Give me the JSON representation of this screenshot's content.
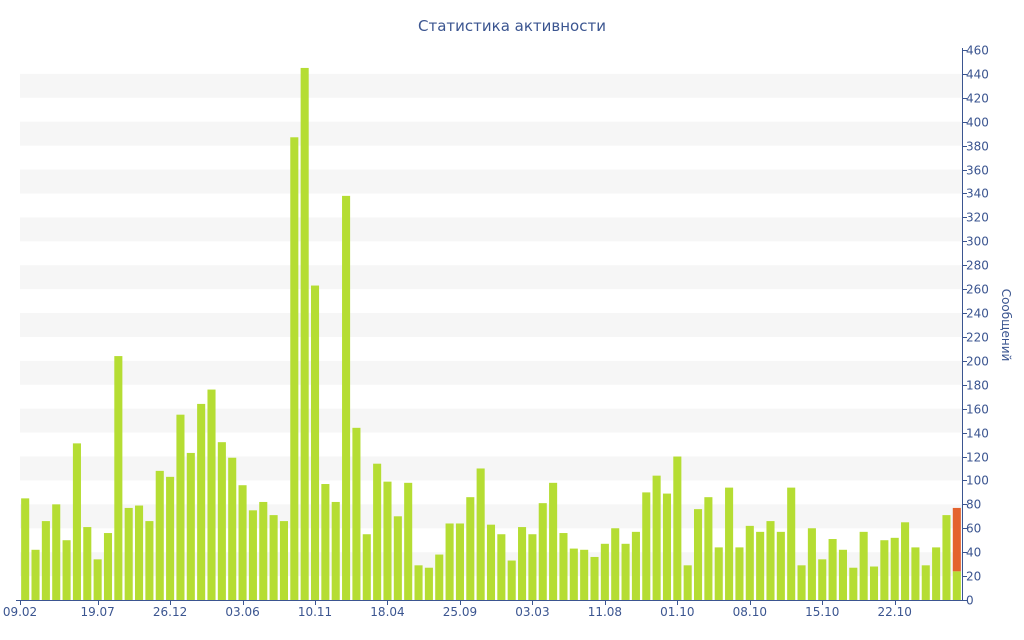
{
  "chart_data": {
    "type": "bar",
    "title": "Статистика активности",
    "ylabel": "Сообщений",
    "xlabel": "",
    "ylim": [
      0,
      460
    ],
    "y_ticks": [
      0,
      20,
      40,
      60,
      80,
      100,
      120,
      140,
      160,
      180,
      200,
      220,
      240,
      260,
      280,
      300,
      320,
      340,
      360,
      380,
      400,
      420,
      440,
      460
    ],
    "x_tick_labels": [
      {
        "index": 0,
        "label": "09.02"
      },
      {
        "index": 7,
        "label": "19.07"
      },
      {
        "index": 14,
        "label": "26.12"
      },
      {
        "index": 21,
        "label": "03.06"
      },
      {
        "index": 28,
        "label": "10.11"
      },
      {
        "index": 35,
        "label": "18.04"
      },
      {
        "index": 42,
        "label": "25.09"
      },
      {
        "index": 49,
        "label": "03.03"
      },
      {
        "index": 56,
        "label": "11.08"
      },
      {
        "index": 63,
        "label": "01.10"
      },
      {
        "index": 70,
        "label": "08.10"
      },
      {
        "index": 77,
        "label": "15.10"
      },
      {
        "index": 84,
        "label": "22.10"
      }
    ],
    "grid": "horizontal-bands",
    "colors": {
      "bar": "#b5dd33",
      "highlight": "#e4632e",
      "axis": "#3b5590",
      "band": "#f6f6f6"
    },
    "highlight_index": 90,
    "values": [
      85,
      42,
      66,
      80,
      50,
      131,
      61,
      34,
      56,
      204,
      77,
      79,
      66,
      108,
      103,
      155,
      123,
      164,
      176,
      132,
      119,
      96,
      75,
      82,
      71,
      66,
      387,
      445,
      263,
      97,
      82,
      338,
      144,
      55,
      114,
      99,
      70,
      98,
      29,
      27,
      38,
      64,
      64,
      86,
      110,
      63,
      55,
      33,
      61,
      55,
      81,
      98,
      56,
      43,
      42,
      36,
      47,
      60,
      47,
      57,
      90,
      104,
      89,
      120,
      29,
      76,
      86,
      44,
      94,
      44,
      62,
      57,
      66,
      57,
      94,
      29,
      60,
      34,
      51,
      42,
      27,
      57,
      28,
      50,
      52,
      65,
      44,
      29,
      44,
      71,
      77
    ]
  }
}
